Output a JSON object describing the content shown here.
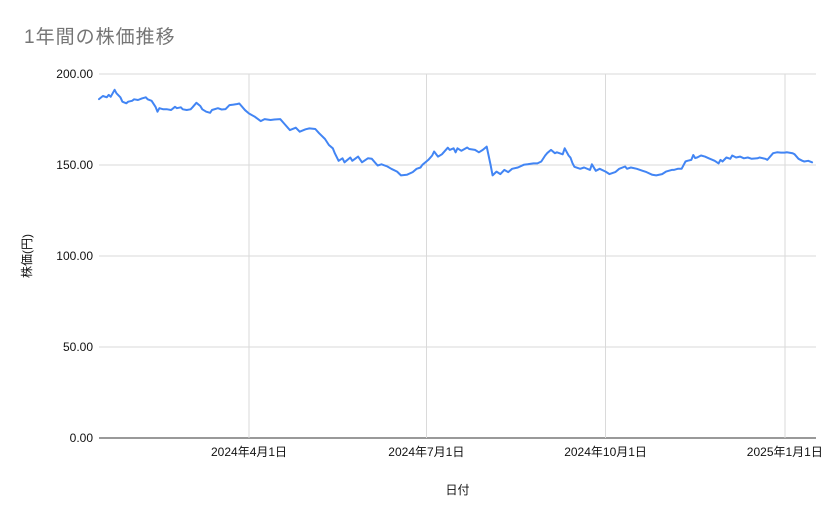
{
  "page": {
    "background_color": "#ffffff"
  },
  "chart": {
    "title_color": "#757575",
    "series_color": "#4285f4",
    "grid_color": "#dadada",
    "axis_line_color": "#333333",
    "tick_text_color": "#111111",
    "axis_title_color": "#111111"
  },
  "chart_data": {
    "type": "line",
    "title": "1年間の株価推移",
    "xlabel": "日付",
    "ylabel": "株価(円)",
    "x_unit_days_since_first_point": true,
    "xlim": [
      0,
      368
    ],
    "ylim": [
      0,
      200
    ],
    "grid": true,
    "legend": "none",
    "y_ticks": [
      {
        "value": 0,
        "label": "0.00"
      },
      {
        "value": 50,
        "label": "50.00"
      },
      {
        "value": 100,
        "label": "100.00"
      },
      {
        "value": 150,
        "label": "150.00"
      },
      {
        "value": 200,
        "label": "200.00"
      }
    ],
    "x_ticks": [
      {
        "value": 77,
        "label": "2024年4月1日"
      },
      {
        "value": 168,
        "label": "2024年7月1日"
      },
      {
        "value": 260,
        "label": "2024年10月1日"
      },
      {
        "value": 352,
        "label": "2025年1月1日"
      }
    ],
    "series": [
      {
        "points": [
          [
            0,
            186.2
          ],
          [
            2,
            187.9
          ],
          [
            4,
            187.2
          ],
          [
            5,
            188.5
          ],
          [
            6,
            187.5
          ],
          [
            8,
            191.3
          ],
          [
            9,
            189.4
          ],
          [
            11,
            187.2
          ],
          [
            12,
            184.8
          ],
          [
            14,
            183.9
          ],
          [
            15,
            184.8
          ],
          [
            17,
            185.3
          ],
          [
            18,
            186.1
          ],
          [
            20,
            185.7
          ],
          [
            22,
            186.6
          ],
          [
            24,
            187.2
          ],
          [
            25,
            186.1
          ],
          [
            27,
            185.3
          ],
          [
            29,
            182.0
          ],
          [
            30,
            179.3
          ],
          [
            31,
            181.2
          ],
          [
            33,
            180.6
          ],
          [
            35,
            180.6
          ],
          [
            37,
            180.2
          ],
          [
            39,
            182.0
          ],
          [
            40,
            181.2
          ],
          [
            42,
            181.7
          ],
          [
            43,
            180.6
          ],
          [
            45,
            180.2
          ],
          [
            47,
            180.6
          ],
          [
            48,
            181.7
          ],
          [
            50,
            184.2
          ],
          [
            52,
            182.4
          ],
          [
            53,
            180.6
          ],
          [
            55,
            179.3
          ],
          [
            57,
            178.7
          ],
          [
            58,
            180.2
          ],
          [
            61,
            181.2
          ],
          [
            63,
            180.5
          ],
          [
            65,
            180.7
          ],
          [
            67,
            182.9
          ],
          [
            69,
            183.2
          ],
          [
            71,
            183.5
          ],
          [
            72,
            183.8
          ],
          [
            75,
            180.1
          ],
          [
            77,
            178.3
          ],
          [
            80,
            176.5
          ],
          [
            83,
            174.1
          ],
          [
            85,
            175.2
          ],
          [
            88,
            174.7
          ],
          [
            90,
            175.0
          ],
          [
            93,
            175.2
          ],
          [
            95,
            172.8
          ],
          [
            98,
            169.2
          ],
          [
            101,
            170.5
          ],
          [
            103,
            168.3
          ],
          [
            106,
            169.6
          ],
          [
            108,
            170.1
          ],
          [
            111,
            169.8
          ],
          [
            113,
            167.4
          ],
          [
            116,
            164.3
          ],
          [
            118,
            161.0
          ],
          [
            120,
            159.2
          ],
          [
            121,
            156.5
          ],
          [
            123,
            152.3
          ],
          [
            125,
            153.7
          ],
          [
            126,
            151.5
          ],
          [
            129,
            154.1
          ],
          [
            130,
            152.3
          ],
          [
            133,
            154.6
          ],
          [
            135,
            151.5
          ],
          [
            138,
            153.7
          ],
          [
            140,
            153.4
          ],
          [
            143,
            149.7
          ],
          [
            145,
            150.4
          ],
          [
            148,
            149.2
          ],
          [
            150,
            147.9
          ],
          [
            153,
            146.4
          ],
          [
            155,
            144.3
          ],
          [
            158,
            144.6
          ],
          [
            161,
            146.1
          ],
          [
            163,
            147.9
          ],
          [
            165,
            148.6
          ],
          [
            166,
            150.1
          ],
          [
            169,
            152.8
          ],
          [
            171,
            155.2
          ],
          [
            172,
            157.4
          ],
          [
            174,
            154.6
          ],
          [
            176,
            155.9
          ],
          [
            179,
            159.5
          ],
          [
            180,
            158.3
          ],
          [
            182,
            159.2
          ],
          [
            183,
            157.0
          ],
          [
            184,
            159.2
          ],
          [
            186,
            157.8
          ],
          [
            189,
            159.6
          ],
          [
            190,
            158.8
          ],
          [
            193,
            158.3
          ],
          [
            195,
            157.0
          ],
          [
            197,
            158.3
          ],
          [
            199,
            160.1
          ],
          [
            201,
            150.0
          ],
          [
            202,
            144.3
          ],
          [
            204,
            146.4
          ],
          [
            206,
            145.0
          ],
          [
            208,
            147.3
          ],
          [
            210,
            146.1
          ],
          [
            212,
            147.9
          ],
          [
            215,
            148.6
          ],
          [
            218,
            150.1
          ],
          [
            220,
            150.4
          ],
          [
            223,
            150.9
          ],
          [
            225,
            150.9
          ],
          [
            227,
            151.9
          ],
          [
            229,
            155.2
          ],
          [
            230,
            156.5
          ],
          [
            232,
            158.3
          ],
          [
            234,
            156.5
          ],
          [
            235,
            157.0
          ],
          [
            238,
            155.9
          ],
          [
            239,
            159.2
          ],
          [
            241,
            155.2
          ],
          [
            242,
            154.0
          ],
          [
            243,
            151.0
          ],
          [
            244,
            149.0
          ],
          [
            247,
            147.9
          ],
          [
            249,
            148.6
          ],
          [
            252,
            147.3
          ],
          [
            253,
            150.4
          ],
          [
            255,
            146.8
          ],
          [
            257,
            147.9
          ],
          [
            260,
            146.4
          ],
          [
            262,
            145.0
          ],
          [
            265,
            146.1
          ],
          [
            267,
            147.9
          ],
          [
            270,
            149.2
          ],
          [
            271,
            147.9
          ],
          [
            273,
            148.6
          ],
          [
            276,
            147.9
          ],
          [
            279,
            146.8
          ],
          [
            281,
            146.1
          ],
          [
            284,
            144.6
          ],
          [
            286,
            144.3
          ],
          [
            289,
            145.0
          ],
          [
            291,
            146.4
          ],
          [
            294,
            147.3
          ],
          [
            295,
            147.3
          ],
          [
            297,
            147.9
          ],
          [
            299,
            147.9
          ],
          [
            301,
            151.9
          ],
          [
            302,
            152.3
          ],
          [
            304,
            152.8
          ],
          [
            305,
            155.5
          ],
          [
            306,
            153.8
          ],
          [
            307,
            154.1
          ],
          [
            309,
            155.2
          ],
          [
            311,
            154.6
          ],
          [
            313,
            153.7
          ],
          [
            316,
            152.3
          ],
          [
            318,
            150.9
          ],
          [
            319,
            152.8
          ],
          [
            320,
            151.9
          ],
          [
            322,
            154.1
          ],
          [
            324,
            153.4
          ],
          [
            325,
            155.2
          ],
          [
            327,
            154.1
          ],
          [
            329,
            154.6
          ],
          [
            331,
            153.7
          ],
          [
            333,
            154.1
          ],
          [
            335,
            153.4
          ],
          [
            338,
            153.7
          ],
          [
            339,
            154.1
          ],
          [
            342,
            153.4
          ],
          [
            343,
            152.8
          ],
          [
            346,
            156.5
          ],
          [
            348,
            157.0
          ],
          [
            350,
            156.8
          ],
          [
            352,
            156.8
          ],
          [
            353,
            157.0
          ],
          [
            356,
            156.5
          ],
          [
            357,
            155.9
          ],
          [
            359,
            153.4
          ],
          [
            361,
            152.3
          ],
          [
            362,
            151.9
          ],
          [
            364,
            152.3
          ],
          [
            366,
            151.5
          ]
        ]
      }
    ]
  }
}
